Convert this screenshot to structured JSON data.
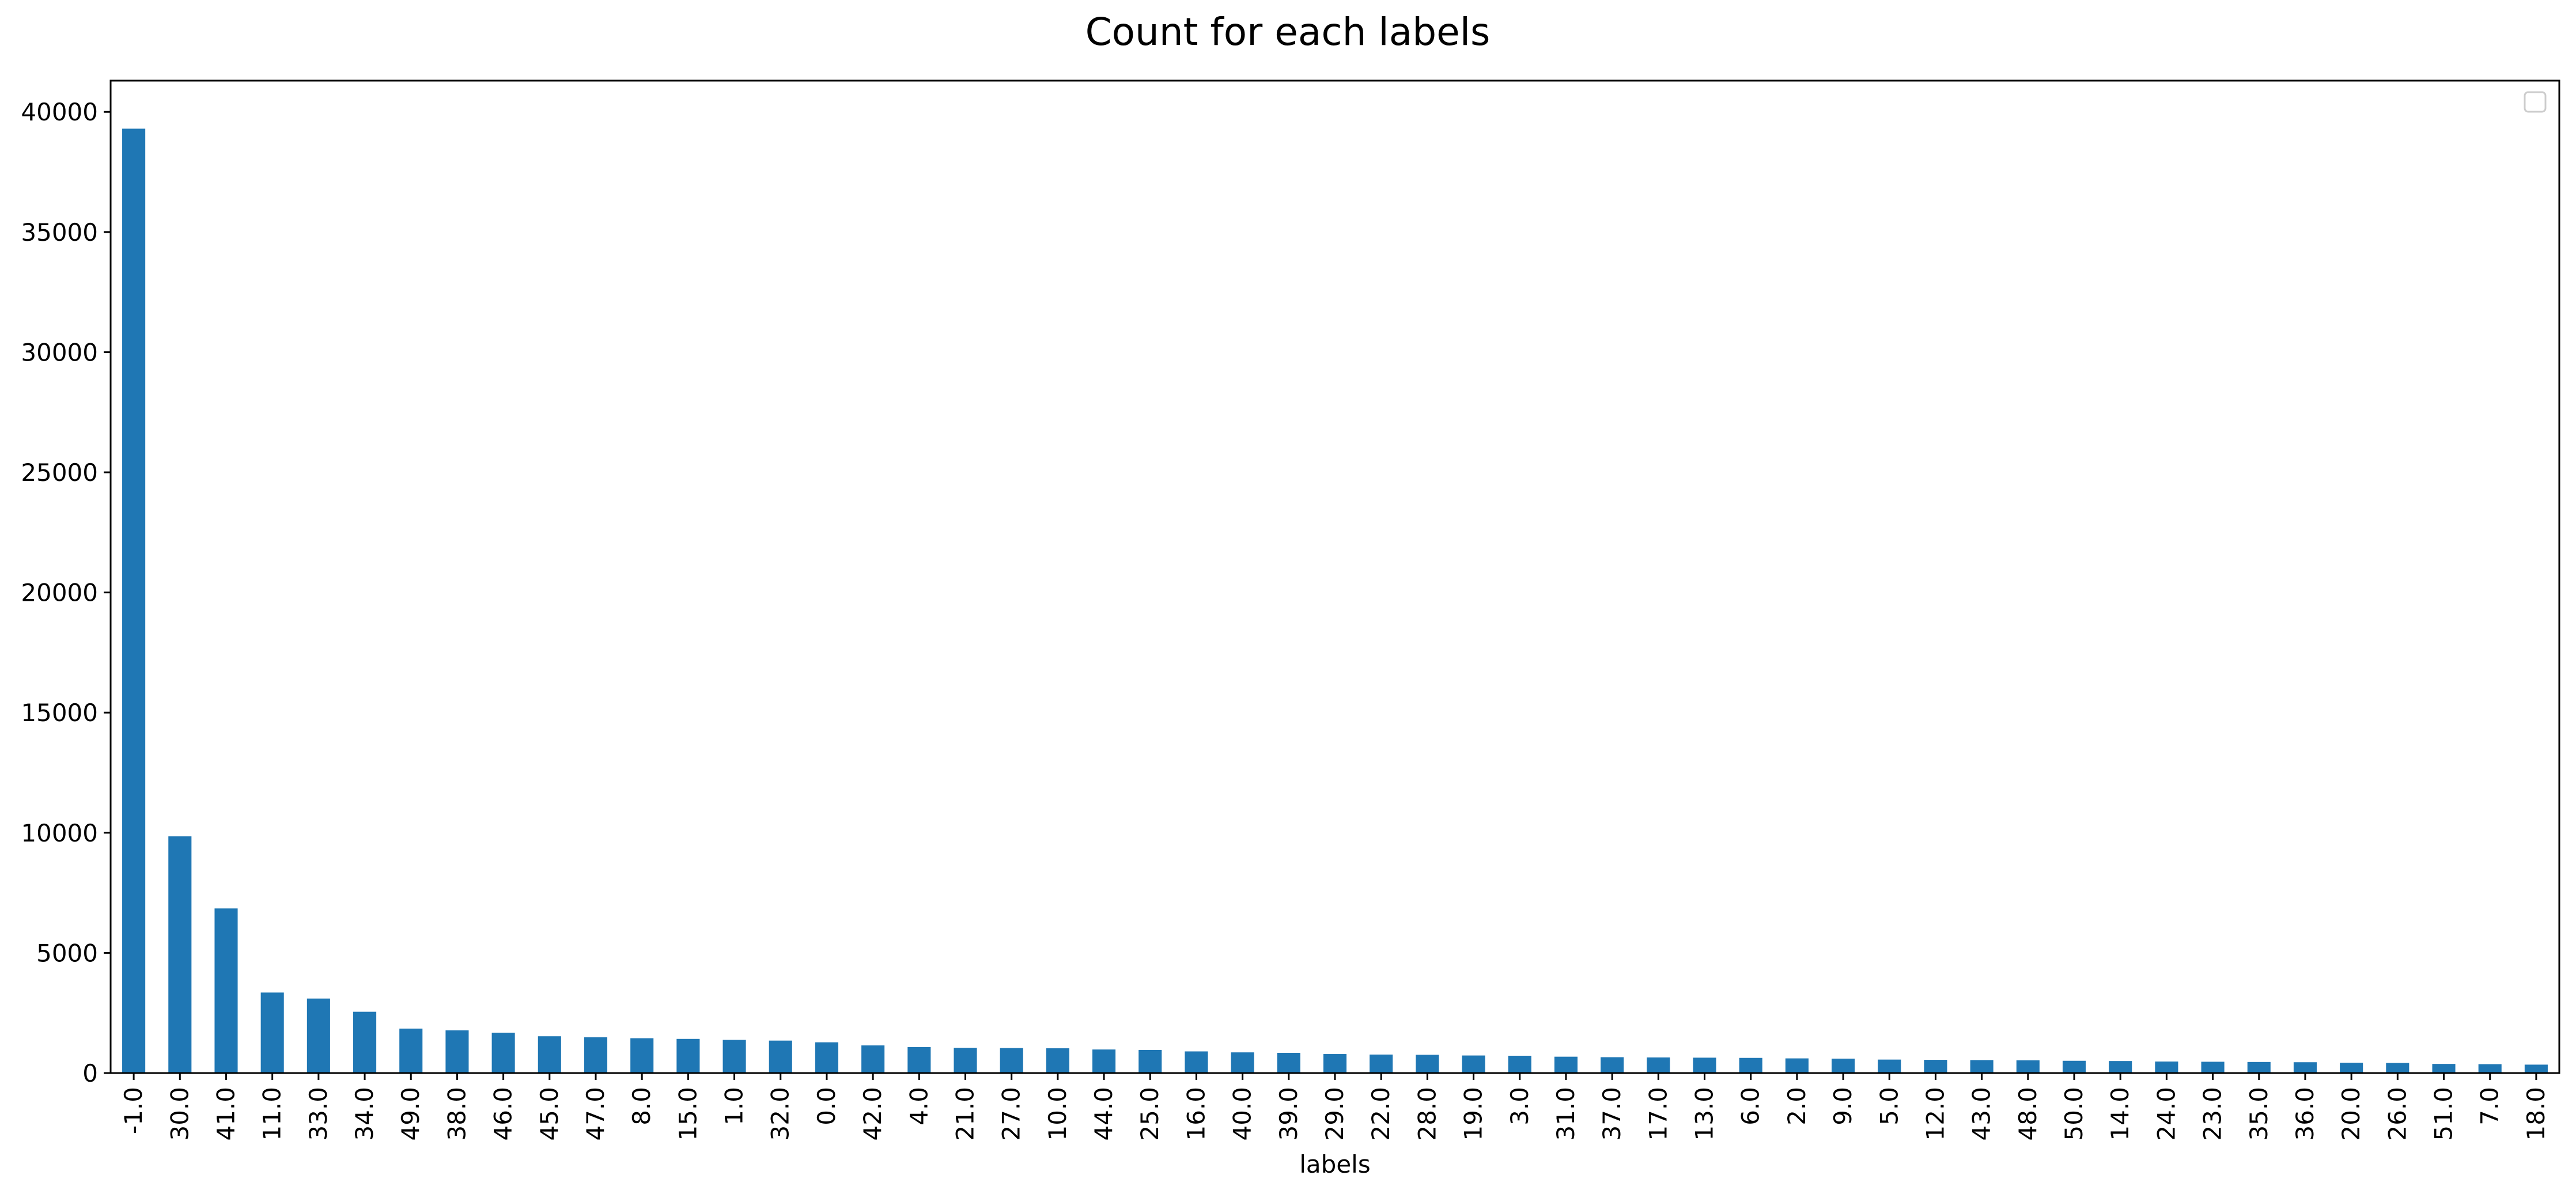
{
  "chart_data": {
    "type": "bar",
    "title": "Count for each labels",
    "xlabel": "labels",
    "ylabel": "",
    "ylim": [
      0,
      41300
    ],
    "yticks": [
      0,
      5000,
      10000,
      15000,
      20000,
      25000,
      30000,
      35000,
      40000
    ],
    "grid": false,
    "legend": "top-right (empty)",
    "bar_color": "#1f77b4",
    "categories": [
      "-1.0",
      "30.0",
      "41.0",
      "11.0",
      "33.0",
      "34.0",
      "49.0",
      "38.0",
      "46.0",
      "45.0",
      "47.0",
      "8.0",
      "15.0",
      "1.0",
      "32.0",
      "0.0",
      "42.0",
      "4.0",
      "21.0",
      "27.0",
      "10.0",
      "44.0",
      "25.0",
      "16.0",
      "40.0",
      "39.0",
      "29.0",
      "22.0",
      "28.0",
      "19.0",
      "3.0",
      "31.0",
      "37.0",
      "17.0",
      "13.0",
      "6.0",
      "2.0",
      "9.0",
      "5.0",
      "12.0",
      "43.0",
      "48.0",
      "50.0",
      "14.0",
      "24.0",
      "23.0",
      "35.0",
      "36.0",
      "20.0",
      "26.0",
      "51.0",
      "7.0",
      "18.0"
    ],
    "values": [
      39300,
      9850,
      6850,
      3350,
      3100,
      2550,
      1850,
      1780,
      1680,
      1530,
      1490,
      1450,
      1420,
      1380,
      1350,
      1280,
      1150,
      1080,
      1050,
      1040,
      1030,
      980,
      960,
      900,
      860,
      840,
      790,
      770,
      760,
      730,
      720,
      680,
      660,
      650,
      640,
      630,
      610,
      600,
      560,
      550,
      540,
      530,
      510,
      500,
      480,
      470,
      460,
      450,
      430,
      420,
      380,
      370,
      350
    ]
  }
}
